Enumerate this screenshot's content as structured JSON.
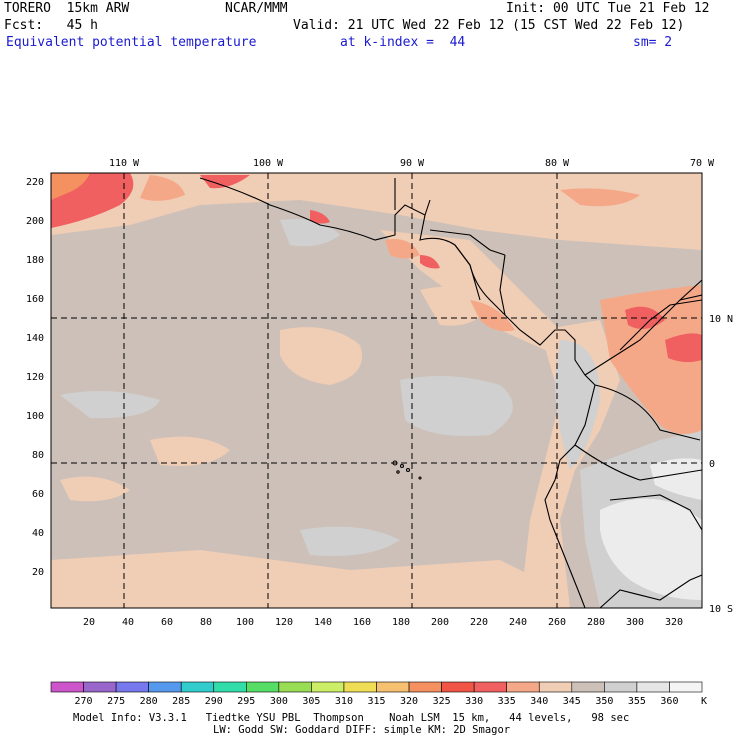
{
  "header": {
    "model": "TORERO  15km ARW",
    "center": "NCAR/MMM",
    "init": "Init: 00 UTC Tue 21 Feb 12",
    "fcst": "Fcst:   45 h",
    "valid": "Valid: 21 UTC Wed 22 Feb 12 (15 CST Wed 22 Feb 12)",
    "field": "Equivalent potential temperature",
    "level": "at k-index =  44",
    "smooth": "sm= 2"
  },
  "map": {
    "top_lon_labels": [
      "110 W",
      "100 W",
      "90 W",
      "80 W",
      "70 W"
    ],
    "right_lat_labels": [
      "10 N",
      "0",
      "10 S"
    ],
    "y_ticks": [
      "220",
      "200",
      "180",
      "160",
      "140",
      "120",
      "100",
      "80",
      "60",
      "40",
      "20"
    ],
    "x_ticks": [
      "20",
      "40",
      "60",
      "80",
      "100",
      "120",
      "140",
      "160",
      "180",
      "200",
      "220",
      "240",
      "260",
      "280",
      "300",
      "320"
    ]
  },
  "colorbar": {
    "labels": [
      "270",
      "275",
      "280",
      "285",
      "290",
      "295",
      "300",
      "305",
      "310",
      "315",
      "320",
      "325",
      "330",
      "335",
      "340",
      "345",
      "350",
      "355",
      "360"
    ],
    "unit": "K",
    "colors": [
      "#cc55cc",
      "#9966cc",
      "#7777ee",
      "#5599ee",
      "#33cccc",
      "#33ddaa",
      "#55dd66",
      "#99dd55",
      "#ccee66",
      "#eedd55",
      "#f5c070",
      "#f59060",
      "#f05545",
      "#f06060",
      "#f5a888",
      "#f0cdb5",
      "#cdc0b8",
      "#d0d0d0",
      "#e6e6e6",
      "#f5f5f5"
    ]
  },
  "footer": {
    "line1": "Model Info: V3.3.1   Tiedtke YSU PBL  Thompson    Noah LSM  15 km,   44 levels,   98 sec",
    "line2": "LW: Godd SW: Goddard DIFF: simple KM: 2D Smagor"
  }
}
